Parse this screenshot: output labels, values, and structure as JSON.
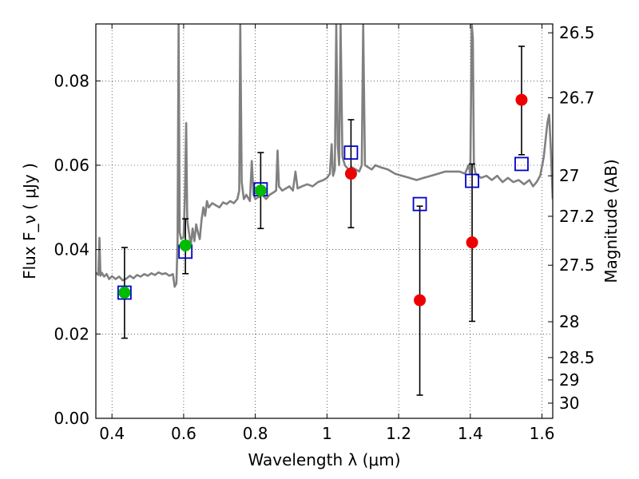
{
  "chart_data": {
    "type": "scatter",
    "xlabel": "Wavelength  λ (μm)",
    "ylabel": "Flux  F_ν  ( μJy )",
    "y2label": "Magnitude (AB)",
    "xlim": [
      0.355,
      1.63
    ],
    "ylim": [
      0.0,
      0.0935
    ],
    "grid": true,
    "x_ticks": [
      0.4,
      0.6,
      0.8,
      1.0,
      1.2,
      1.4,
      1.6
    ],
    "x_tick_labels": [
      "0.4",
      "0.6",
      "0.8",
      "1",
      "1.2",
      "1.4",
      "1.6"
    ],
    "y_ticks": [
      0.0,
      0.02,
      0.04,
      0.06,
      0.08
    ],
    "y_tick_labels": [
      "0.00",
      "0.02",
      "0.04",
      "0.06",
      "0.08"
    ],
    "y2_ticks": [
      {
        "label": "26.5",
        "flux": 0.0914
      },
      {
        "label": "26.7",
        "flux": 0.076
      },
      {
        "label": "27",
        "flux": 0.0575
      },
      {
        "label": "27.2",
        "flux": 0.0479
      },
      {
        "label": "27.5",
        "flux": 0.0363
      },
      {
        "label": "28",
        "flux": 0.0229
      },
      {
        "label": "28.5",
        "flux": 0.0144
      },
      {
        "label": "29",
        "flux": 0.0091
      },
      {
        "label": "30",
        "flux": 0.0036
      }
    ],
    "series": [
      {
        "kind": "line",
        "color": "#808080",
        "points": [
          [
            0.355,
            0.0345
          ],
          [
            0.362,
            0.034
          ],
          [
            0.365,
            0.0428
          ],
          [
            0.368,
            0.0338
          ],
          [
            0.372,
            0.0345
          ],
          [
            0.378,
            0.0336
          ],
          [
            0.385,
            0.0342
          ],
          [
            0.392,
            0.033
          ],
          [
            0.4,
            0.0337
          ],
          [
            0.41,
            0.033
          ],
          [
            0.42,
            0.0336
          ],
          [
            0.43,
            0.0327
          ],
          [
            0.44,
            0.0331
          ],
          [
            0.45,
            0.0338
          ],
          [
            0.46,
            0.0332
          ],
          [
            0.47,
            0.034
          ],
          [
            0.48,
            0.0336
          ],
          [
            0.49,
            0.0342
          ],
          [
            0.5,
            0.0338
          ],
          [
            0.51,
            0.0344
          ],
          [
            0.52,
            0.034
          ],
          [
            0.53,
            0.0346
          ],
          [
            0.54,
            0.0342
          ],
          [
            0.55,
            0.0344
          ],
          [
            0.56,
            0.0338
          ],
          [
            0.57,
            0.0342
          ],
          [
            0.575,
            0.0312
          ],
          [
            0.58,
            0.032
          ],
          [
            0.583,
            0.042
          ],
          [
            0.586,
            0.0935
          ],
          [
            0.589,
            0.044
          ],
          [
            0.593,
            0.0425
          ],
          [
            0.6,
            0.043
          ],
          [
            0.604,
            0.054
          ],
          [
            0.607,
            0.07
          ],
          [
            0.61,
            0.047
          ],
          [
            0.615,
            0.044
          ],
          [
            0.62,
            0.041
          ],
          [
            0.625,
            0.045
          ],
          [
            0.63,
            0.042
          ],
          [
            0.635,
            0.046
          ],
          [
            0.64,
            0.044
          ],
          [
            0.645,
            0.0425
          ],
          [
            0.65,
            0.047
          ],
          [
            0.655,
            0.05
          ],
          [
            0.66,
            0.048
          ],
          [
            0.665,
            0.0515
          ],
          [
            0.67,
            0.05
          ],
          [
            0.68,
            0.051
          ],
          [
            0.69,
            0.0505
          ],
          [
            0.7,
            0.05
          ],
          [
            0.71,
            0.0512
          ],
          [
            0.72,
            0.0508
          ],
          [
            0.73,
            0.0515
          ],
          [
            0.74,
            0.051
          ],
          [
            0.75,
            0.052
          ],
          [
            0.755,
            0.054
          ],
          [
            0.758,
            0.0935
          ],
          [
            0.762,
            0.056
          ],
          [
            0.768,
            0.052
          ],
          [
            0.775,
            0.053
          ],
          [
            0.785,
            0.0515
          ],
          [
            0.79,
            0.061
          ],
          [
            0.795,
            0.053
          ],
          [
            0.8,
            0.052
          ],
          [
            0.81,
            0.0525
          ],
          [
            0.82,
            0.053
          ],
          [
            0.83,
            0.052
          ],
          [
            0.84,
            0.053
          ],
          [
            0.85,
            0.0535
          ],
          [
            0.858,
            0.054
          ],
          [
            0.862,
            0.0635
          ],
          [
            0.866,
            0.055
          ],
          [
            0.875,
            0.054
          ],
          [
            0.885,
            0.0545
          ],
          [
            0.895,
            0.055
          ],
          [
            0.905,
            0.054
          ],
          [
            0.912,
            0.0585
          ],
          [
            0.918,
            0.0545
          ],
          [
            0.93,
            0.055
          ],
          [
            0.945,
            0.0555
          ],
          [
            0.96,
            0.055
          ],
          [
            0.975,
            0.056
          ],
          [
            0.99,
            0.0565
          ],
          [
            1.0,
            0.057
          ],
          [
            1.008,
            0.058
          ],
          [
            1.013,
            0.065
          ],
          [
            1.017,
            0.0575
          ],
          [
            1.022,
            0.059
          ],
          [
            1.026,
            0.0935
          ],
          [
            1.03,
            0.065
          ],
          [
            1.034,
            0.06
          ],
          [
            1.038,
            0.0935
          ],
          [
            1.043,
            0.062
          ],
          [
            1.05,
            0.06
          ],
          [
            1.06,
            0.059
          ],
          [
            1.07,
            0.0595
          ],
          [
            1.08,
            0.059
          ],
          [
            1.09,
            0.0585
          ],
          [
            1.097,
            0.06
          ],
          [
            1.101,
            0.0935
          ],
          [
            1.106,
            0.06
          ],
          [
            1.115,
            0.0595
          ],
          [
            1.125,
            0.059
          ],
          [
            1.135,
            0.06
          ],
          [
            1.15,
            0.0595
          ],
          [
            1.17,
            0.059
          ],
          [
            1.19,
            0.058
          ],
          [
            1.21,
            0.0575
          ],
          [
            1.23,
            0.057
          ],
          [
            1.25,
            0.0565
          ],
          [
            1.27,
            0.057
          ],
          [
            1.29,
            0.0575
          ],
          [
            1.31,
            0.058
          ],
          [
            1.33,
            0.0585
          ],
          [
            1.35,
            0.0585
          ],
          [
            1.37,
            0.0585
          ],
          [
            1.385,
            0.058
          ],
          [
            1.395,
            0.06
          ],
          [
            1.4,
            0.058
          ],
          [
            1.404,
            0.0935
          ],
          [
            1.407,
            0.09
          ],
          [
            1.41,
            0.06
          ],
          [
            1.415,
            0.058
          ],
          [
            1.43,
            0.057
          ],
          [
            1.445,
            0.0575
          ],
          [
            1.46,
            0.0565
          ],
          [
            1.475,
            0.0575
          ],
          [
            1.49,
            0.056
          ],
          [
            1.505,
            0.057
          ],
          [
            1.52,
            0.056
          ],
          [
            1.535,
            0.0565
          ],
          [
            1.55,
            0.0555
          ],
          [
            1.565,
            0.0565
          ],
          [
            1.575,
            0.055
          ],
          [
            1.585,
            0.056
          ],
          [
            1.595,
            0.0575
          ],
          [
            1.605,
            0.062
          ],
          [
            1.615,
            0.07
          ],
          [
            1.62,
            0.072
          ],
          [
            1.625,
            0.063
          ],
          [
            1.63,
            0.052
          ]
        ]
      },
      {
        "kind": "open-square",
        "color": "#0000cc",
        "points": [
          [
            0.435,
            0.0298
          ],
          [
            0.605,
            0.0395
          ],
          [
            0.815,
            0.0543
          ],
          [
            1.067,
            0.063
          ],
          [
            1.259,
            0.0508
          ],
          [
            1.405,
            0.0563
          ],
          [
            1.543,
            0.0603
          ]
        ]
      },
      {
        "kind": "filled-circle",
        "color": "#00bb00",
        "points": [
          [
            0.435,
            0.0298
          ],
          [
            0.605,
            0.041
          ],
          [
            0.815,
            0.054
          ]
        ]
      },
      {
        "kind": "filled-circle",
        "color": "#ee0000",
        "points": [
          [
            1.067,
            0.058
          ],
          [
            1.259,
            0.028
          ],
          [
            1.405,
            0.0417
          ],
          [
            1.543,
            0.0755
          ]
        ]
      }
    ],
    "error_bars": [
      {
        "x": 0.435,
        "y": 0.0298,
        "low": 0.019,
        "high": 0.0405
      },
      {
        "x": 0.605,
        "y": 0.041,
        "low": 0.0343,
        "high": 0.0473
      },
      {
        "x": 0.815,
        "y": 0.054,
        "low": 0.045,
        "high": 0.063
      },
      {
        "x": 1.067,
        "y": 0.058,
        "low": 0.0452,
        "high": 0.0708
      },
      {
        "x": 1.259,
        "y": 0.028,
        "low": 0.0055,
        "high": 0.0503
      },
      {
        "x": 1.405,
        "y": 0.0417,
        "low": 0.023,
        "high": 0.0603
      },
      {
        "x": 1.543,
        "y": 0.0755,
        "low": 0.0625,
        "high": 0.0882
      }
    ]
  }
}
